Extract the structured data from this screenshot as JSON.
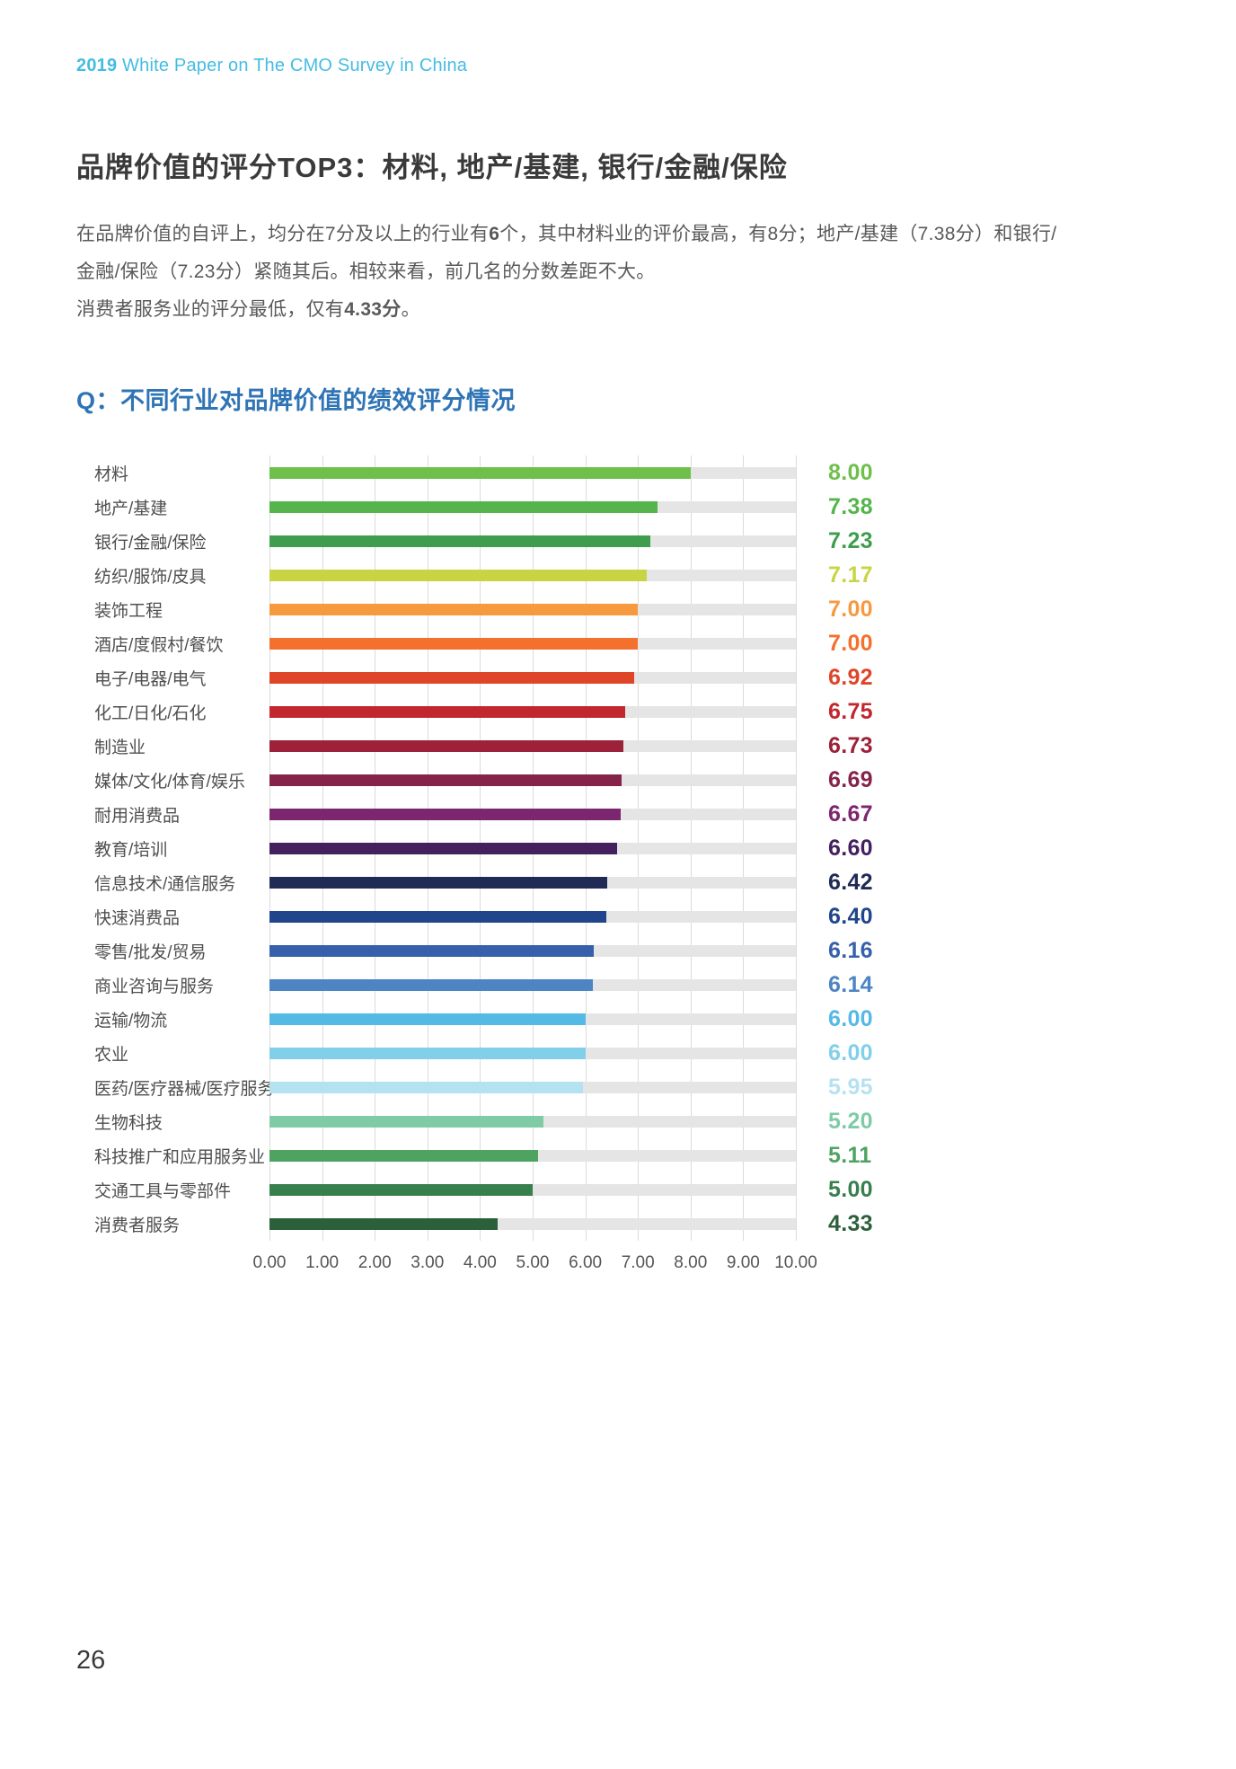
{
  "page": {
    "number": "26"
  },
  "header": {
    "parts": [
      {
        "t": "2019",
        "b": true
      },
      {
        "t": " White Paper on The CMO Survey in China",
        "b": false
      }
    ]
  },
  "section": {
    "title": "品牌价值的评分TOP3：材料, 地产/基建, 银行/金融/保险",
    "paragraph_1_parts": [
      {
        "t": "在品牌价值的自评上，均分在7分及以上的行业有",
        "b": false
      },
      {
        "t": "6",
        "b": true
      },
      {
        "t": "个，其中材料业的评价最高，有8分；地产/基建（7.38分）和银行/金融/保险（7.23分）紧随其后。相较来看，前几名的分数差距不大。",
        "b": false
      }
    ],
    "paragraph_2_parts": [
      {
        "t": "消费者服务业的评分最低，仅有",
        "b": false
      },
      {
        "t": "4.33分",
        "b": true
      },
      {
        "t": "。",
        "b": false
      }
    ]
  },
  "chart_data": {
    "type": "bar",
    "orientation": "horizontal",
    "title": "Q：不同行业对品牌价值的绩效评分情况",
    "xlabel": "",
    "ylabel": "",
    "xlim": [
      0,
      10
    ],
    "grid": true,
    "track_color": "#E5E5E5",
    "x_ticks": [
      "0.00",
      "1.00",
      "2.00",
      "3.00",
      "4.00",
      "5.00",
      "6.00",
      "7.00",
      "8.00",
      "9.00",
      "10.00"
    ],
    "categories": [
      "材料",
      "地产/基建",
      "银行/金融/保险",
      "纺织/服饰/皮具",
      "装饰工程",
      "酒店/度假村/餐饮",
      "电子/电器/电气",
      "化工/日化/石化",
      "制造业",
      "媒体/文化/体育/娱乐",
      "耐用消费品",
      "教育/培训",
      "信息技术/通信服务",
      "快速消费品",
      "零售/批发/贸易",
      "商业咨询与服务",
      "运输/物流",
      "农业",
      "医药/医疗器械/医疗服务",
      "生物科技",
      "科技推广和应用服务业",
      "交通工具与零部件",
      "消费者服务"
    ],
    "values": [
      8.0,
      7.38,
      7.23,
      7.17,
      7.0,
      7.0,
      6.92,
      6.75,
      6.73,
      6.69,
      6.67,
      6.6,
      6.42,
      6.4,
      6.16,
      6.14,
      6.0,
      6.0,
      5.95,
      5.2,
      5.11,
      5.0,
      4.33
    ],
    "colors": [
      "#6EC04B",
      "#55B54C",
      "#3F9E4D",
      "#C9D445",
      "#F6993F",
      "#F3702D",
      "#DF4528",
      "#C1272F",
      "#9B2239",
      "#85234B",
      "#7C2670",
      "#44205F",
      "#1F2A55",
      "#21458C",
      "#3760AC",
      "#4C84C4",
      "#55B9E6",
      "#82CFE9",
      "#B5E2F1",
      "#7FCBA6",
      "#4FA361",
      "#377F4C",
      "#2C603A"
    ]
  }
}
